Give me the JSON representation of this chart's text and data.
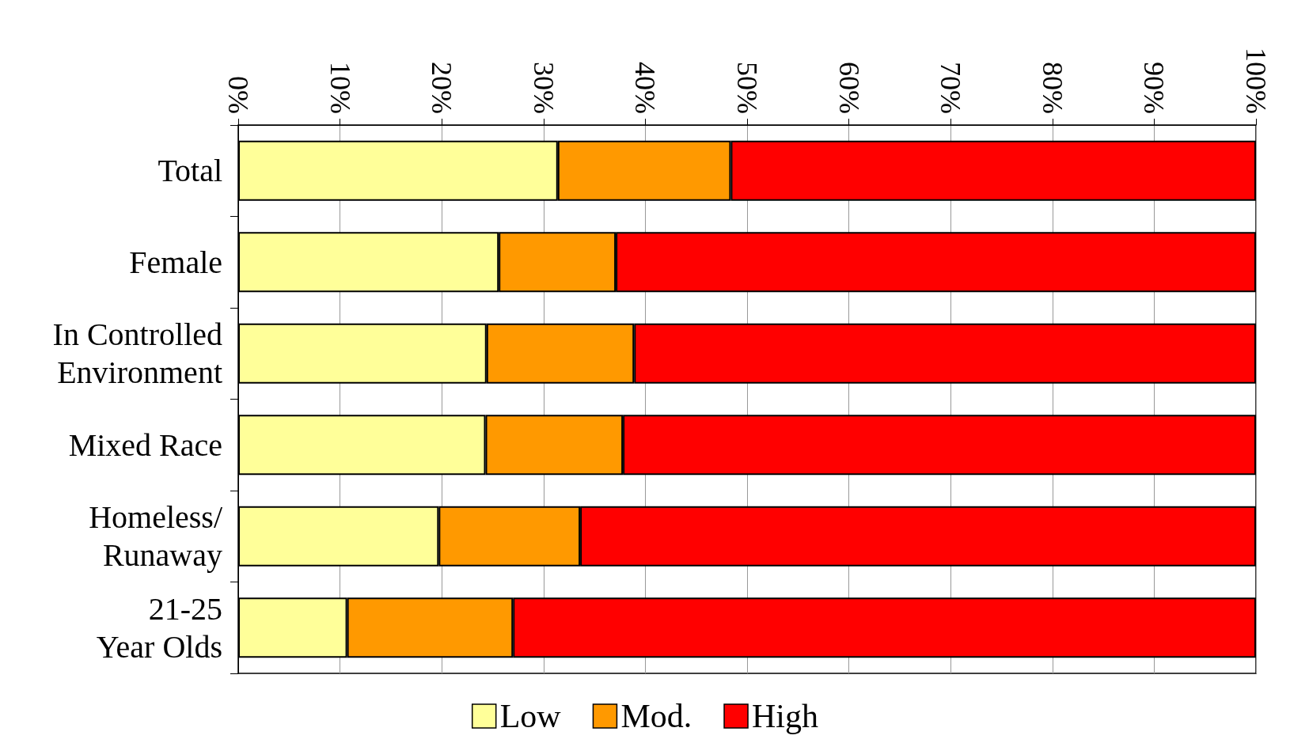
{
  "chart_data": {
    "type": "bar",
    "orientation": "horizontal",
    "stacked": true,
    "categories": [
      "Total",
      "Female",
      "In Controlled\nEnvironment",
      "Mixed Race",
      "Homeless/\nRunaway",
      "21-25\nYear Olds"
    ],
    "series": [
      {
        "name": "Low",
        "color": "#ffff99",
        "values": [
          31.4,
          25.6,
          24.4,
          24.3,
          19.7,
          10.7
        ]
      },
      {
        "name": "Mod.",
        "color": "#ff9900",
        "values": [
          17.0,
          11.5,
          14.5,
          13.5,
          13.9,
          16.3
        ]
      },
      {
        "name": "High",
        "color": "#ff0000",
        "values": [
          51.6,
          62.9,
          61.1,
          62.2,
          66.4,
          73.0
        ]
      }
    ],
    "xlim": [
      0,
      100
    ],
    "xticks": [
      {
        "value": 0,
        "label": "0%"
      },
      {
        "value": 10,
        "label": "10%"
      },
      {
        "value": 20,
        "label": "20%"
      },
      {
        "value": 30,
        "label": "30%"
      },
      {
        "value": 40,
        "label": "40%"
      },
      {
        "value": 50,
        "label": "50%"
      },
      {
        "value": 60,
        "label": "60%"
      },
      {
        "value": 70,
        "label": "70%"
      },
      {
        "value": 80,
        "label": "80%"
      },
      {
        "value": 90,
        "label": "90%"
      },
      {
        "value": 100,
        "label": "100%"
      }
    ],
    "grid": "x",
    "legend": "bottom"
  }
}
